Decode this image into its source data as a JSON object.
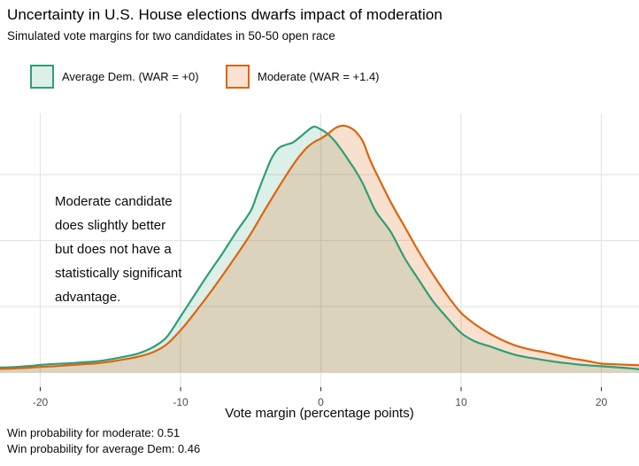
{
  "header": {
    "title": "Uncertainty in U.S. House elections dwarfs impact of moderation",
    "subtitle": "Simulated vote margins for two candidates in 50-50 open race"
  },
  "legend": {
    "items": [
      {
        "label": "Average Dem. (WAR = +0)",
        "stroke": "#2f9e77",
        "fill": "#ddefe7"
      },
      {
        "label": "Moderate (WAR = +1.4)",
        "stroke": "#dc650f",
        "fill": "#f9e2d1"
      }
    ]
  },
  "annotation": {
    "text": "Moderate candidate\ndoes slightly better\nbut does not have a\n statistically significant\nadvantage."
  },
  "x_axis": {
    "label": "Vote margin (percentage points)",
    "ticks": [
      {
        "value": -20,
        "label": "-20"
      },
      {
        "value": -10,
        "label": "-10"
      },
      {
        "value": 0,
        "label": "0"
      },
      {
        "value": 10,
        "label": "10"
      },
      {
        "value": 20,
        "label": "20"
      }
    ]
  },
  "caption": {
    "text": "Win probability for moderate: 0.51\nWin probability for average Dem: 0.46"
  },
  "chart_data": {
    "type": "area",
    "subtype": "density",
    "title": "Uncertainty in U.S. House elections dwarfs impact of moderation",
    "subtitle": "Simulated vote margins for two candidates in 50-50 open race",
    "xlabel": "Vote margin (percentage points)",
    "ylabel": "",
    "xlim": [
      -22.9,
      22.7
    ],
    "ylim": [
      0,
      0.0785
    ],
    "x_ticks": [
      -20,
      -10,
      0,
      10,
      20
    ],
    "y_gridlines": [
      0,
      0.02,
      0.04,
      0.06
    ],
    "y_axis_labels_shown": false,
    "grid": true,
    "legend_position": "top-left",
    "win_probability_moderate": 0.51,
    "win_probability_average_dem": 0.46,
    "series": [
      {
        "name": "Average Dem. (WAR = +0)",
        "color": "#2f9e77",
        "fill_opacity": 0.17,
        "points": [
          [
            -22.9,
            0.0015
          ],
          [
            -22,
            0.0016
          ],
          [
            -21,
            0.0019
          ],
          [
            -20,
            0.0023
          ],
          [
            -19,
            0.0026
          ],
          [
            -18,
            0.0028
          ],
          [
            -17,
            0.0031
          ],
          [
            -16,
            0.0034
          ],
          [
            -15,
            0.004
          ],
          [
            -14,
            0.0048
          ],
          [
            -13,
            0.0058
          ],
          [
            -12,
            0.0076
          ],
          [
            -11,
            0.0107
          ],
          [
            -10,
            0.017
          ],
          [
            -9,
            0.0235
          ],
          [
            -8,
            0.03
          ],
          [
            -7,
            0.0362
          ],
          [
            -6,
            0.0428
          ],
          [
            -5,
            0.049
          ],
          [
            -4.5,
            0.0545
          ],
          [
            -4,
            0.06
          ],
          [
            -3.5,
            0.065
          ],
          [
            -3,
            0.068
          ],
          [
            -2.5,
            0.069
          ],
          [
            -2,
            0.0697
          ],
          [
            -1.5,
            0.0713
          ],
          [
            -1,
            0.0731
          ],
          [
            -0.5,
            0.0745
          ],
          [
            0,
            0.0737
          ],
          [
            0.5,
            0.0723
          ],
          [
            1,
            0.0701
          ],
          [
            1.5,
            0.0673
          ],
          [
            2,
            0.0642
          ],
          [
            2.5,
            0.061
          ],
          [
            3,
            0.0572
          ],
          [
            3.5,
            0.0525
          ],
          [
            4,
            0.0483
          ],
          [
            5,
            0.0425
          ],
          [
            6,
            0.0345
          ],
          [
            7,
            0.028
          ],
          [
            8,
            0.0216
          ],
          [
            9,
            0.0166
          ],
          [
            10,
            0.012
          ],
          [
            11,
            0.0094
          ],
          [
            12,
            0.008
          ],
          [
            13,
            0.0065
          ],
          [
            14,
            0.0052
          ],
          [
            15,
            0.0044
          ],
          [
            16,
            0.0037
          ],
          [
            17,
            0.0031
          ],
          [
            18,
            0.0026
          ],
          [
            19,
            0.0022
          ],
          [
            20,
            0.0019
          ],
          [
            21,
            0.0016
          ],
          [
            22,
            0.0013
          ],
          [
            22.7,
            0.001
          ]
        ]
      },
      {
        "name": "Moderate (WAR = +1.4)",
        "color": "#dc650f",
        "fill_opacity": 0.2,
        "points": [
          [
            -22.9,
            0.0011
          ],
          [
            -22,
            0.0012
          ],
          [
            -21,
            0.0014
          ],
          [
            -20,
            0.0017
          ],
          [
            -19,
            0.0019
          ],
          [
            -18,
            0.0022
          ],
          [
            -17,
            0.0025
          ],
          [
            -16,
            0.0028
          ],
          [
            -15,
            0.0033
          ],
          [
            -14,
            0.004
          ],
          [
            -13,
            0.0048
          ],
          [
            -12,
            0.0061
          ],
          [
            -11,
            0.0085
          ],
          [
            -10,
            0.0128
          ],
          [
            -9,
            0.018
          ],
          [
            -8,
            0.0236
          ],
          [
            -7,
            0.0295
          ],
          [
            -6,
            0.0356
          ],
          [
            -5,
            0.042
          ],
          [
            -4,
            0.0492
          ],
          [
            -3,
            0.0562
          ],
          [
            -2,
            0.0628
          ],
          [
            -1.5,
            0.0657
          ],
          [
            -1,
            0.0681
          ],
          [
            -0.5,
            0.0698
          ],
          [
            0,
            0.0709
          ],
          [
            0.5,
            0.0723
          ],
          [
            1,
            0.074
          ],
          [
            1.5,
            0.0748
          ],
          [
            2,
            0.0744
          ],
          [
            2.5,
            0.0729
          ],
          [
            3,
            0.07
          ],
          [
            3.5,
            0.0645
          ],
          [
            4,
            0.06
          ],
          [
            5,
            0.0515
          ],
          [
            6,
            0.044
          ],
          [
            7,
            0.0365
          ],
          [
            8,
            0.0297
          ],
          [
            9,
            0.0235
          ],
          [
            10,
            0.0181
          ],
          [
            11,
            0.0146
          ],
          [
            12,
            0.0119
          ],
          [
            13,
            0.0097
          ],
          [
            14,
            0.008
          ],
          [
            15,
            0.0069
          ],
          [
            16,
            0.0061
          ],
          [
            17,
            0.0051
          ],
          [
            18,
            0.0042
          ],
          [
            19,
            0.0035
          ],
          [
            20,
            0.0027
          ],
          [
            21,
            0.0025
          ],
          [
            22,
            0.0023
          ],
          [
            22.7,
            0.0022
          ]
        ]
      }
    ]
  }
}
